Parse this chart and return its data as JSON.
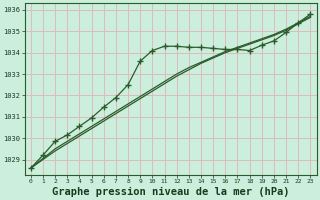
{
  "background_color": "#cceedd",
  "grid_color": "#ddbbbb",
  "line_color": "#2a5c2a",
  "xlabel": "Graphe pression niveau de la mer (hPa)",
  "xlim": [
    -0.5,
    23.5
  ],
  "ylim": [
    1028.3,
    1036.3
  ],
  "yticks": [
    1029,
    1030,
    1031,
    1032,
    1033,
    1034,
    1035,
    1036
  ],
  "xticks": [
    0,
    1,
    2,
    3,
    4,
    5,
    6,
    7,
    8,
    9,
    10,
    11,
    12,
    13,
    14,
    15,
    16,
    17,
    18,
    19,
    20,
    21,
    22,
    23
  ],
  "line1_marked": [
    1028.6,
    1029.2,
    1029.85,
    1030.15,
    1030.55,
    1030.95,
    1031.45,
    1031.9,
    1032.5,
    1033.6,
    1034.1,
    1034.3,
    1034.3,
    1034.25,
    1034.25,
    1034.2,
    1034.15,
    1034.15,
    1034.1,
    1034.35,
    1034.55,
    1034.95,
    1035.4,
    1035.8
  ],
  "line2_straight": [
    1028.6,
    1029.0,
    1029.4,
    1029.75,
    1030.1,
    1030.45,
    1030.8,
    1031.15,
    1031.5,
    1031.85,
    1032.2,
    1032.55,
    1032.9,
    1033.2,
    1033.5,
    1033.75,
    1034.0,
    1034.2,
    1034.4,
    1034.6,
    1034.8,
    1035.05,
    1035.35,
    1035.65
  ],
  "line3_straight": [
    1028.6,
    1029.05,
    1029.5,
    1029.85,
    1030.2,
    1030.55,
    1030.9,
    1031.25,
    1031.6,
    1031.95,
    1032.3,
    1032.65,
    1033.0,
    1033.3,
    1033.55,
    1033.8,
    1034.05,
    1034.25,
    1034.45,
    1034.65,
    1034.85,
    1035.1,
    1035.4,
    1035.7
  ]
}
